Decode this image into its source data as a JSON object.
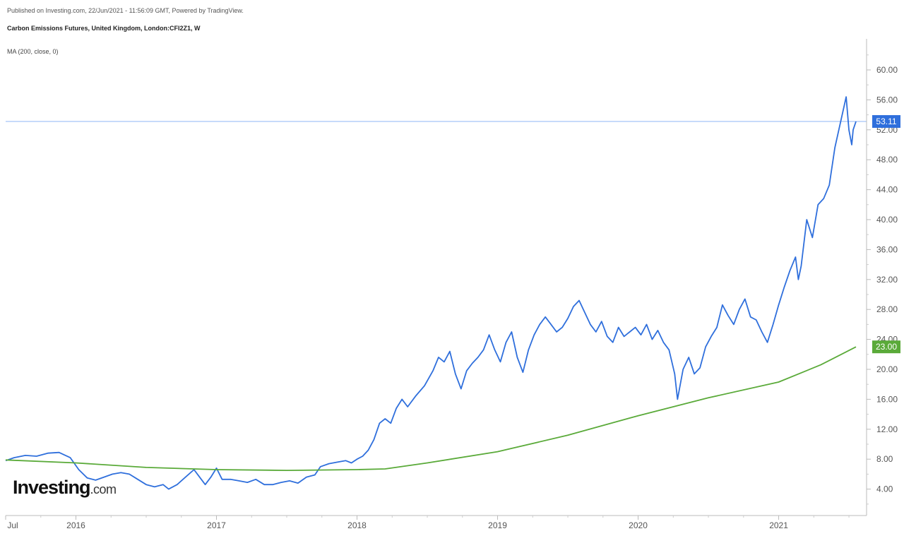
{
  "header": {
    "published": "Published on Investing.com, 22/Jun/2021 - 11:56:09 GMT, Powered by TradingView.",
    "title": "Carbon Emissions Futures, United Kingdom, London:CFI2Z1, W",
    "indicator": "MA (200, close, 0)"
  },
  "logo": {
    "brand": "Investing",
    "suffix": ".com"
  },
  "chart_data": {
    "type": "line",
    "xlim": [
      2015.5,
      2021.55
    ],
    "ylim": [
      0,
      64
    ],
    "x_ticks": [
      {
        "label": "Jul",
        "value": 2015.5
      },
      {
        "label": "2016",
        "value": 2016.0
      },
      {
        "label": "2017",
        "value": 2017.0
      },
      {
        "label": "2018",
        "value": 2018.0
      },
      {
        "label": "2019",
        "value": 2019.0
      },
      {
        "label": "2020",
        "value": 2020.0
      },
      {
        "label": "2021",
        "value": 2021.0
      }
    ],
    "y_ticks": [
      4,
      8,
      12,
      16,
      20,
      24,
      28,
      32,
      36,
      40,
      44,
      48,
      52,
      56,
      60
    ],
    "y_tick_labels": [
      "4.00",
      "8.00",
      "12.00",
      "16.00",
      "20.00",
      "24.00",
      "28.00",
      "32.00",
      "36.00",
      "40.00",
      "44.00",
      "48.00",
      "52.00",
      "56.00",
      "60.00"
    ],
    "series": [
      {
        "color": "#2f6fdc",
        "last_value_label": "53.11",
        "points": [
          [
            2015.5,
            7.8
          ],
          [
            2015.56,
            8.2
          ],
          [
            2015.64,
            8.5
          ],
          [
            2015.72,
            8.4
          ],
          [
            2015.8,
            8.8
          ],
          [
            2015.88,
            8.9
          ],
          [
            2015.96,
            8.2
          ],
          [
            2016.02,
            6.6
          ],
          [
            2016.08,
            5.5
          ],
          [
            2016.14,
            5.2
          ],
          [
            2016.2,
            5.6
          ],
          [
            2016.26,
            6.0
          ],
          [
            2016.32,
            6.2
          ],
          [
            2016.38,
            6.0
          ],
          [
            2016.44,
            5.3
          ],
          [
            2016.5,
            4.6
          ],
          [
            2016.56,
            4.3
          ],
          [
            2016.62,
            4.6
          ],
          [
            2016.66,
            4.0
          ],
          [
            2016.72,
            4.6
          ],
          [
            2016.78,
            5.6
          ],
          [
            2016.84,
            6.6
          ],
          [
            2016.88,
            5.6
          ],
          [
            2016.92,
            4.6
          ],
          [
            2016.96,
            5.6
          ],
          [
            2017.0,
            6.8
          ],
          [
            2017.04,
            5.3
          ],
          [
            2017.1,
            5.3
          ],
          [
            2017.16,
            5.1
          ],
          [
            2017.22,
            4.9
          ],
          [
            2017.28,
            5.3
          ],
          [
            2017.34,
            4.6
          ],
          [
            2017.4,
            4.6
          ],
          [
            2017.46,
            4.9
          ],
          [
            2017.52,
            5.1
          ],
          [
            2017.58,
            4.8
          ],
          [
            2017.64,
            5.6
          ],
          [
            2017.7,
            5.9
          ],
          [
            2017.74,
            7.0
          ],
          [
            2017.8,
            7.4
          ],
          [
            2017.86,
            7.6
          ],
          [
            2017.92,
            7.8
          ],
          [
            2017.96,
            7.5
          ],
          [
            2018.0,
            8.0
          ],
          [
            2018.04,
            8.4
          ],
          [
            2018.08,
            9.2
          ],
          [
            2018.12,
            10.6
          ],
          [
            2018.16,
            12.8
          ],
          [
            2018.2,
            13.4
          ],
          [
            2018.24,
            12.8
          ],
          [
            2018.28,
            14.8
          ],
          [
            2018.32,
            16.0
          ],
          [
            2018.36,
            15.0
          ],
          [
            2018.42,
            16.5
          ],
          [
            2018.48,
            17.8
          ],
          [
            2018.54,
            19.8
          ],
          [
            2018.58,
            21.6
          ],
          [
            2018.62,
            21.0
          ],
          [
            2018.66,
            22.4
          ],
          [
            2018.7,
            19.4
          ],
          [
            2018.74,
            17.4
          ],
          [
            2018.78,
            19.8
          ],
          [
            2018.82,
            20.8
          ],
          [
            2018.86,
            21.6
          ],
          [
            2018.9,
            22.6
          ],
          [
            2018.94,
            24.6
          ],
          [
            2018.98,
            22.6
          ],
          [
            2019.02,
            21.0
          ],
          [
            2019.06,
            23.6
          ],
          [
            2019.1,
            25.0
          ],
          [
            2019.14,
            21.6
          ],
          [
            2019.18,
            19.6
          ],
          [
            2019.22,
            22.6
          ],
          [
            2019.26,
            24.6
          ],
          [
            2019.3,
            26.0
          ],
          [
            2019.34,
            27.0
          ],
          [
            2019.38,
            26.0
          ],
          [
            2019.42,
            25.0
          ],
          [
            2019.46,
            25.6
          ],
          [
            2019.5,
            26.8
          ],
          [
            2019.54,
            28.4
          ],
          [
            2019.58,
            29.2
          ],
          [
            2019.62,
            27.6
          ],
          [
            2019.66,
            26.0
          ],
          [
            2019.7,
            25.0
          ],
          [
            2019.74,
            26.4
          ],
          [
            2019.78,
            24.4
          ],
          [
            2019.82,
            23.6
          ],
          [
            2019.86,
            25.6
          ],
          [
            2019.9,
            24.4
          ],
          [
            2019.94,
            25.0
          ],
          [
            2019.98,
            25.6
          ],
          [
            2020.02,
            24.6
          ],
          [
            2020.06,
            26.0
          ],
          [
            2020.1,
            24.0
          ],
          [
            2020.14,
            25.2
          ],
          [
            2020.18,
            23.6
          ],
          [
            2020.22,
            22.6
          ],
          [
            2020.26,
            19.4
          ],
          [
            2020.28,
            16.0
          ],
          [
            2020.32,
            20.0
          ],
          [
            2020.36,
            21.6
          ],
          [
            2020.4,
            19.4
          ],
          [
            2020.44,
            20.2
          ],
          [
            2020.48,
            23.0
          ],
          [
            2020.52,
            24.4
          ],
          [
            2020.56,
            25.6
          ],
          [
            2020.6,
            28.6
          ],
          [
            2020.64,
            27.2
          ],
          [
            2020.68,
            26.0
          ],
          [
            2020.72,
            28.0
          ],
          [
            2020.76,
            29.4
          ],
          [
            2020.8,
            27.0
          ],
          [
            2020.84,
            26.6
          ],
          [
            2020.88,
            25.0
          ],
          [
            2020.92,
            23.6
          ],
          [
            2020.96,
            26.0
          ],
          [
            2021.0,
            28.6
          ],
          [
            2021.04,
            31.0
          ],
          [
            2021.08,
            33.2
          ],
          [
            2021.12,
            35.0
          ],
          [
            2021.14,
            32.0
          ],
          [
            2021.16,
            33.8
          ],
          [
            2021.2,
            40.0
          ],
          [
            2021.24,
            37.6
          ],
          [
            2021.28,
            42.0
          ],
          [
            2021.32,
            42.8
          ],
          [
            2021.36,
            44.6
          ],
          [
            2021.4,
            49.6
          ],
          [
            2021.44,
            53.0
          ],
          [
            2021.48,
            56.4
          ],
          [
            2021.5,
            52.0
          ],
          [
            2021.52,
            50.0
          ],
          [
            2021.53,
            52.0
          ],
          [
            2021.55,
            53.11
          ]
        ]
      },
      {
        "color": "#5aaa39",
        "last_value_label": "23.00",
        "points": [
          [
            2015.5,
            7.9
          ],
          [
            2016.0,
            7.5
          ],
          [
            2016.5,
            6.9
          ],
          [
            2017.0,
            6.6
          ],
          [
            2017.5,
            6.5
          ],
          [
            2018.0,
            6.6
          ],
          [
            2018.2,
            6.7
          ],
          [
            2018.5,
            7.5
          ],
          [
            2019.0,
            9.0
          ],
          [
            2019.5,
            11.2
          ],
          [
            2020.0,
            13.8
          ],
          [
            2020.5,
            16.2
          ],
          [
            2021.0,
            18.3
          ],
          [
            2021.3,
            20.6
          ],
          [
            2021.55,
            23.0
          ]
        ]
      }
    ],
    "horizontal_line": {
      "value": 53.11,
      "color": "#8fb6f5"
    }
  }
}
